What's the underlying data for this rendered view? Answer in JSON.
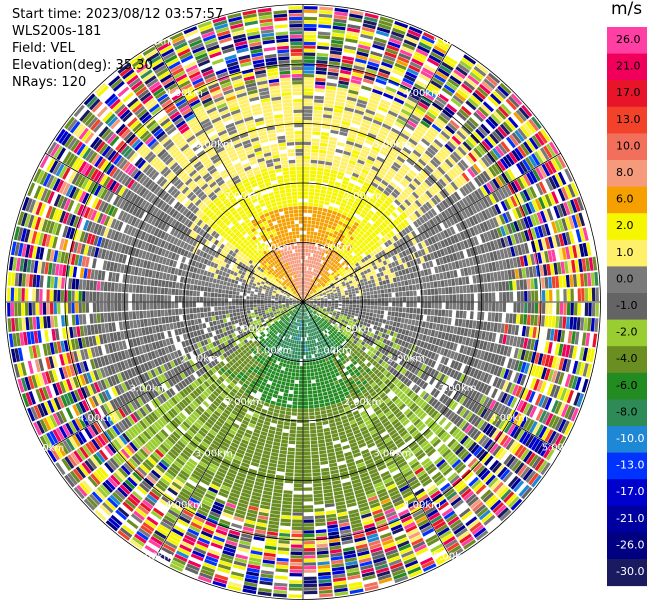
{
  "info": {
    "start_time": "Start time: 2023/08/12 03:57:57",
    "instrument": "WLS200s-181",
    "field": "Field: VEL",
    "elevation": "Elevation(deg): 35.30",
    "nrays": "NRays: 120"
  },
  "colorbar": {
    "unit": "m/s",
    "ticks": [
      "26.0",
      "21.0",
      "17.0",
      "13.0",
      "10.0",
      "8.0",
      "6.0",
      "2.0",
      "1.0",
      "0.0",
      "-1.0",
      "-2.0",
      "-4.0",
      "-6.0",
      "-8.0",
      "-10.0",
      "-13.0",
      "-17.0",
      "-21.0",
      "-26.0",
      "-30.0"
    ],
    "colors": [
      "#ff3fa3",
      "#f0005a",
      "#e8142a",
      "#f2422a",
      "#f26f5c",
      "#f59a7b",
      "#f6a000",
      "#f6f600",
      "#fff06a",
      "#7a7a7a",
      "#646464",
      "#9acd32",
      "#6b8e23",
      "#228b22",
      "#2e8b57",
      "#1e88d6",
      "#0033ff",
      "#0000cd",
      "#0000a0",
      "#000080",
      "#1a1a60"
    ]
  },
  "chart_data": {
    "type": "heatmap",
    "projection": "polar PPI",
    "field": "VEL",
    "units": "m/s",
    "nrays": 120,
    "range_km_max": 5.0,
    "range_ring_labels": [
      "1.00km",
      "2.00km",
      "3.00km",
      "4.00km",
      "5.00km"
    ],
    "velocity_scale_m_s": [
      -30,
      30
    ],
    "pattern": {
      "north_near": "positive 6 to 10 m/s",
      "north_mid": "positive 1 to 2 m/s",
      "south_near": "negative -6 to -8 m/s",
      "south_mid": "negative -2 to -4 m/s",
      "east_west": "near 0 m/s",
      "beyond_km": 3.5,
      "beyond_state": "noisy/unfiltered"
    }
  }
}
